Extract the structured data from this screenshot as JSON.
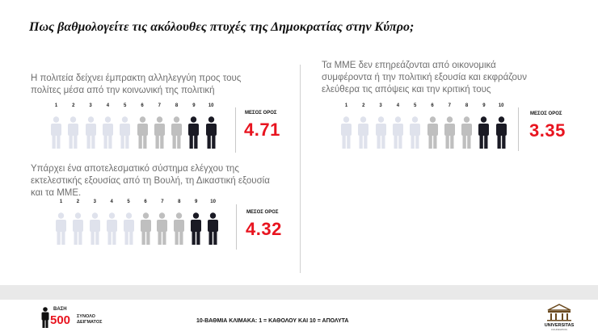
{
  "title": "Πως βαθμολογείτε τις ακόλουθες πτυχές της Δημοκρατίας στην Κύπρο;",
  "colors": {
    "accent": "#e8141f",
    "light_figure": "#dfe2ec",
    "mid_figure": "#bfbfbf",
    "dark_figure": "#1a1a24"
  },
  "chart_data": [
    {
      "type": "pictogram",
      "title": "Η πολιτεία δείχνει έμπρακτη αλληλεγγύη προς τους πολίτες μέσα από την κοινωνική της πολιτική",
      "scale": [
        "1",
        "2",
        "3",
        "4",
        "5",
        "6",
        "7",
        "8",
        "9",
        "10"
      ],
      "mean_label": "ΜΕΣΟΣ ΟΡΟΣ",
      "mean_value": "4.71"
    },
    {
      "type": "pictogram",
      "title": "Υπάρχει ένα αποτελεσματικό σύστημα ελέγχου της εκτελεστικής εξουσίας από τη Βουλή, τη Δικαστική εξουσία και τα ΜΜΕ.",
      "scale": [
        "1",
        "2",
        "3",
        "4",
        "5",
        "6",
        "7",
        "8",
        "9",
        "10"
      ],
      "mean_label": "ΜΕΣΟΣ ΟΡΟΣ",
      "mean_value": "4.32"
    },
    {
      "type": "pictogram",
      "title": "Τα ΜΜΕ δεν επηρεάζονται από οικονομικά συμφέροντα ή την πολιτική εξουσία και εκφράζουν ελεύθερα τις απόψεις και την κριτική τους",
      "scale": [
        "1",
        "2",
        "3",
        "4",
        "5",
        "6",
        "7",
        "8",
        "9",
        "10"
      ],
      "mean_label": "ΜΕΣΟΣ ΟΡΟΣ",
      "mean_value": "3.35"
    }
  ],
  "footer": {
    "base_label": "ΒΑΣΗ",
    "base_value": "500",
    "base_sub_1": "ΣΥΝΟΛΟ",
    "base_sub_2": "ΔΕΙΓΜΑΤΟΣ",
    "scale_note": "10-ΒΑΘΜΙΑ ΚΛΙΜΑΚΑ: 1 = ΚΑΘΟΛΟΥ ΚΑΙ 10 = ΑΠΟΛΥΤΑ",
    "logo_text_1": "UNIVERSITAS",
    "logo_text_2": "FOUNDATION",
    "logo_icon": "building-icon"
  }
}
